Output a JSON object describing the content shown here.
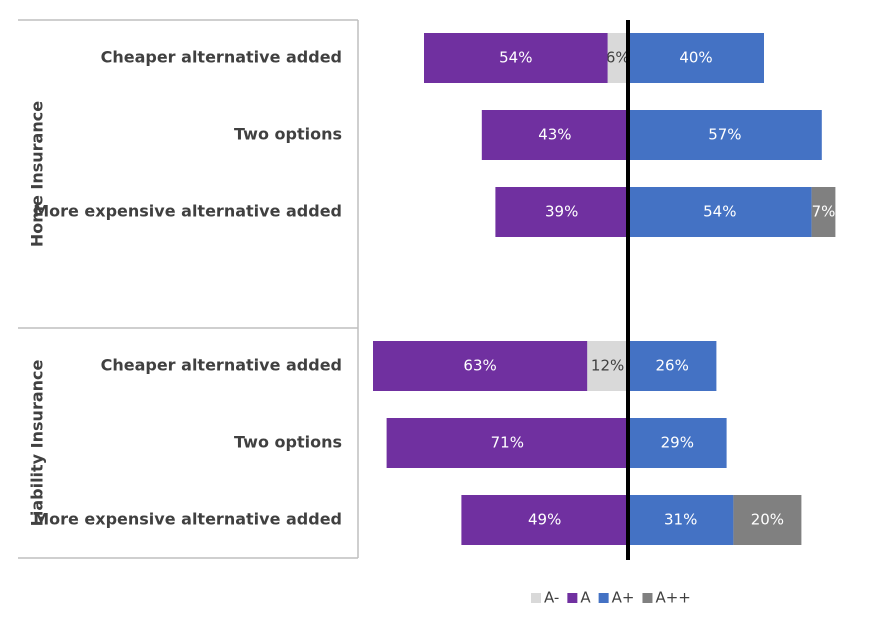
{
  "chart_data": {
    "type": "bar",
    "orientation": "horizontal",
    "stacked": true,
    "diverging": true,
    "groups": [
      {
        "name": "Home Insurance",
        "categories": [
          "Cheaper alternative added",
          "Two options",
          "More expensive alternative added"
        ],
        "values": {
          "A-": [
            6,
            0,
            0
          ],
          "A": [
            54,
            43,
            39
          ],
          "A+": [
            40,
            57,
            54
          ],
          "A++": [
            0,
            0,
            7
          ]
        }
      },
      {
        "name": "Liability Insurance",
        "categories": [
          "Cheaper alternative added",
          "Two options",
          "More expensive alternative added"
        ],
        "values": {
          "A-": [
            12,
            0,
            0
          ],
          "A": [
            63,
            71,
            49
          ],
          "A+": [
            26,
            29,
            31
          ],
          "A++": [
            0,
            0,
            20
          ]
        }
      }
    ],
    "series": [
      {
        "name": "A-",
        "color": "#d9d9d9",
        "side": "left",
        "label_color": "#404040"
      },
      {
        "name": "A",
        "color": "#7030a0",
        "side": "left",
        "label_color": "#ffffff"
      },
      {
        "name": "A+",
        "color": "#4472c4",
        "side": "right",
        "label_color": "#ffffff"
      },
      {
        "name": "A++",
        "color": "#808080",
        "side": "right",
        "label_color": "#ffffff"
      }
    ],
    "value_format": "percent",
    "legend_position": "bottom",
    "grid": false,
    "center_line": true
  }
}
